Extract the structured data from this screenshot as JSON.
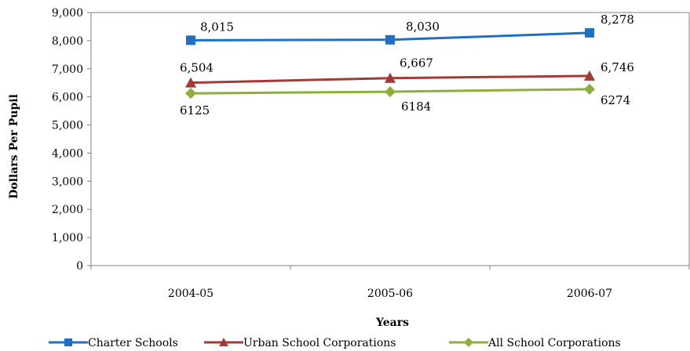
{
  "chart_data": {
    "type": "line",
    "categories": [
      "2004-05",
      "2005-06",
      "2006-07"
    ],
    "xlabel": "Years",
    "ylabel": "Dollars Per Pupil",
    "ylim": [
      0,
      9000
    ],
    "yticks": [
      "0",
      "1,000",
      "2,000",
      "3,000",
      "4,000",
      "5,000",
      "6,000",
      "7,000",
      "8,000",
      "9,000"
    ],
    "grid": false,
    "legend": "bottom",
    "series": [
      {
        "name": "Charter Schools",
        "values": [
          8015,
          8030,
          8278
        ],
        "labels": [
          "8,015",
          "8,030",
          "8,278"
        ],
        "color": "#1f6fc5",
        "marker": "square"
      },
      {
        "name": "Urban School Corporations",
        "values": [
          6504,
          6667,
          6746
        ],
        "labels": [
          "6,504",
          "6,667",
          "6,746"
        ],
        "color": "#a33a35",
        "marker": "triangle"
      },
      {
        "name": "All School Corporations",
        "values": [
          6125,
          6184,
          6274
        ],
        "labels": [
          "6125",
          "6184",
          "6274"
        ],
        "color": "#8faf3c",
        "marker": "diamond"
      }
    ]
  }
}
